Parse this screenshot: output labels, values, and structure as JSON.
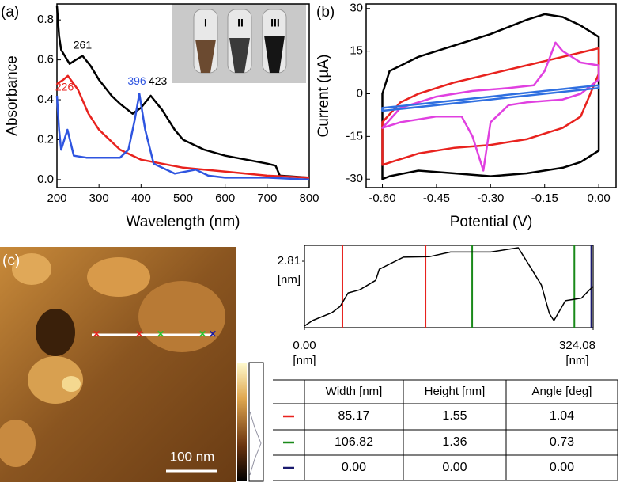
{
  "chart_data": [
    {
      "type": "line",
      "panel": "(a)",
      "x_label": "Wavelength (nm)",
      "y_label": "Absorbance",
      "xlim": [
        200,
        800
      ],
      "xticks": [
        200,
        300,
        400,
        500,
        600,
        700,
        800
      ],
      "ylim": [
        -0.04,
        0.88
      ],
      "yticks": [
        {
          "value": 0,
          "label": "0.0"
        },
        {
          "value": 0.2,
          "label": "0.2"
        },
        {
          "value": 0.4,
          "label": "0.4"
        },
        {
          "value": 0.6,
          "label": "0.6"
        },
        {
          "value": 0.8,
          "label": "0.8"
        }
      ],
      "series": [
        {
          "color": "#000000",
          "x": [
            200,
            205,
            210,
            230,
            245,
            261,
            280,
            300,
            330,
            350,
            380,
            400,
            423,
            450,
            480,
            500,
            550,
            600,
            650,
            700,
            720,
            730,
            800
          ],
          "values": [
            0.87,
            0.72,
            0.65,
            0.58,
            0.6,
            0.62,
            0.57,
            0.5,
            0.42,
            0.38,
            0.33,
            0.36,
            0.42,
            0.35,
            0.25,
            0.2,
            0.15,
            0.12,
            0.1,
            0.08,
            0.07,
            0.02,
            0.01
          ]
        },
        {
          "color": "#e8221e",
          "x": [
            200,
            215,
            226,
            250,
            275,
            300,
            350,
            400,
            500,
            600,
            700,
            800
          ],
          "values": [
            0.48,
            0.5,
            0.52,
            0.45,
            0.33,
            0.25,
            0.15,
            0.1,
            0.06,
            0.04,
            0.02,
            0.01
          ]
        },
        {
          "color": "#2f55e0",
          "x": [
            200,
            205,
            210,
            225,
            240,
            270,
            300,
            350,
            370,
            385,
            396,
            410,
            430,
            480,
            530,
            560,
            600,
            700,
            800
          ],
          "values": [
            0.42,
            0.25,
            0.15,
            0.25,
            0.12,
            0.11,
            0.11,
            0.11,
            0.15,
            0.3,
            0.43,
            0.25,
            0.08,
            0.03,
            0.05,
            0.02,
            0.01,
            0.01,
            0.0
          ]
        }
      ],
      "annotations": [
        {
          "text": "261",
          "x": 261,
          "y": 0.67,
          "color": "#000000"
        },
        {
          "text": "226",
          "x": 218,
          "y": 0.46,
          "color": "#e8221e"
        },
        {
          "text": "396",
          "x": 390,
          "y": 0.49,
          "color": "#2f55e0"
        },
        {
          "text": "423",
          "x": 440,
          "y": 0.49,
          "color": "#000000"
        }
      ],
      "inset_labels": [
        "I",
        "II",
        "III"
      ]
    },
    {
      "type": "line",
      "panel": "(b)",
      "x_label": "Potential (V)",
      "y_label": "Current (µA)",
      "closed": true,
      "xlim": [
        -0.645,
        0.048
      ],
      "xticks": [
        {
          "value": -0.6,
          "label": "-0.60"
        },
        -0.45,
        {
          "value": -0.3,
          "label": "-0.30"
        },
        -0.15,
        {
          "value": 0,
          "label": "0.00"
        }
      ],
      "ylim": [
        -33,
        31.6
      ],
      "yticks": [
        -30,
        -15,
        0,
        15,
        30
      ],
      "series": [
        {
          "color": "#000000",
          "x": [
            -0.6,
            -0.6,
            -0.58,
            -0.5,
            -0.4,
            -0.3,
            -0.2,
            -0.15,
            -0.1,
            -0.05,
            0,
            0,
            -0.05,
            -0.1,
            -0.2,
            -0.3,
            -0.4,
            -0.5,
            -0.58
          ],
          "values": [
            -30,
            0,
            8,
            13,
            17,
            21,
            26,
            28,
            27,
            24,
            20,
            -20,
            -24,
            -26,
            -28,
            -29,
            -28,
            -27,
            -29
          ]
        },
        {
          "color": "#e8221e",
          "x": [
            -0.6,
            -0.55,
            -0.5,
            -0.4,
            -0.3,
            -0.2,
            -0.1,
            0,
            0,
            -0.05,
            -0.1,
            -0.2,
            -0.3,
            -0.4,
            -0.5,
            -0.6
          ],
          "values": [
            -10,
            -3,
            0,
            4,
            7,
            10,
            13,
            16,
            7,
            -8,
            -12,
            -16,
            -18,
            -19,
            -21,
            -25
          ]
        },
        {
          "color": "#e040e0",
          "x": [
            -0.6,
            -0.55,
            -0.45,
            -0.35,
            -0.25,
            -0.18,
            -0.15,
            -0.12,
            -0.1,
            -0.05,
            0,
            0,
            -0.05,
            -0.1,
            -0.2,
            -0.25,
            -0.3,
            -0.32,
            -0.35,
            -0.38,
            -0.45,
            -0.55
          ],
          "values": [
            -12,
            -5,
            -1,
            1,
            2,
            3,
            8,
            18,
            15,
            11,
            10,
            5,
            0,
            -2,
            -3,
            -4,
            -10,
            -27,
            -15,
            -8,
            -8,
            -10
          ]
        },
        {
          "color": "#2f6fe0",
          "x": [
            -0.6,
            -0.3,
            0,
            0,
            -0.3,
            -0.6
          ],
          "values": [
            -5,
            -1,
            3,
            2,
            -2,
            -6
          ]
        }
      ]
    },
    {
      "type": "line",
      "panel": "(c)",
      "x_unit": "[nm]",
      "y_unit": "[nm]",
      "xlim": [
        0,
        324.08
      ],
      "xticks": [
        {
          "value": 0,
          "label": "0.00"
        },
        324.08
      ],
      "ylim": [
        0,
        3.48
      ],
      "yticks": [
        2.81
      ],
      "series": [
        {
          "color": "#000000",
          "x": [
            0,
            9,
            31,
            40,
            49,
            62,
            80,
            84,
            111,
            140,
            164,
            209,
            240,
            253,
            266,
            275,
            280,
            293,
            311,
            320,
            324.08
          ],
          "values": [
            0.07,
            0.3,
            0.64,
            0.9,
            1.47,
            1.6,
            2.0,
            2.47,
            2.98,
            3.0,
            3.2,
            3.2,
            3.38,
            2.6,
            1.8,
            0.6,
            0.3,
            1.14,
            1.25,
            1.6,
            1.74
          ]
        }
      ],
      "cursors": [
        {
          "color": "#e8221e",
          "x": 42.6
        },
        {
          "color": "#e8221e",
          "x": 135.9
        },
        {
          "color": "#1a8a1a",
          "x": 188.3
        },
        {
          "color": "#1a8a1a",
          "x": 303
        },
        {
          "color": "#1a1a6e",
          "x": 322
        }
      ]
    }
  ],
  "table": {
    "header": [
      "Width [nm]",
      "Height [nm]",
      "Angle [deg]"
    ],
    "rows": [
      {
        "color": "#e8221e",
        "cells": [
          "85.17",
          "1.55",
          "1.04"
        ]
      },
      {
        "color": "#1a8a1a",
        "cells": [
          "106.82",
          "1.36",
          "0.73"
        ]
      },
      {
        "color": "#1a1a6e",
        "cells": [
          "0.00",
          "0.00",
          "0.00"
        ]
      }
    ]
  },
  "image": {
    "scale_bar": "100 nm"
  }
}
